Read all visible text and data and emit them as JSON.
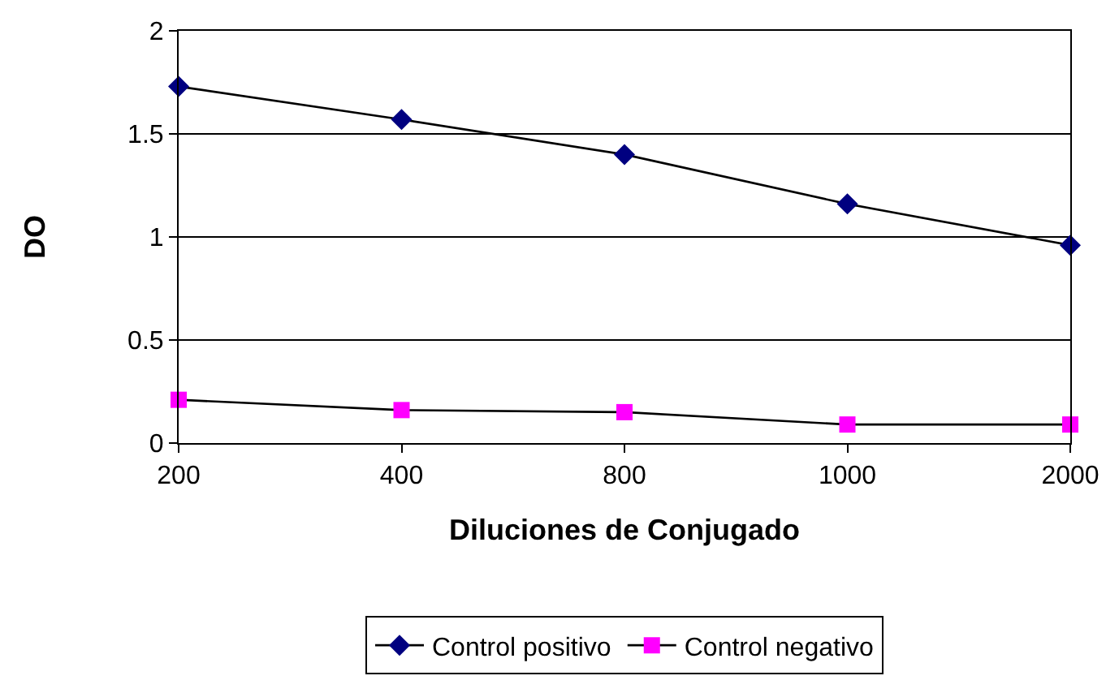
{
  "chart_data": {
    "type": "line",
    "xlabel": "Diluciones de Conjugado",
    "ylabel": "DO",
    "categories": [
      "200",
      "400",
      "800",
      "1000",
      "2000"
    ],
    "series": [
      {
        "name": "Control positivo",
        "color": "#000080",
        "marker": "diamond",
        "values": [
          1.73,
          1.57,
          1.4,
          1.16,
          0.96
        ]
      },
      {
        "name": "Control negativo",
        "color": "#ff00ff",
        "marker": "square",
        "values": [
          0.21,
          0.16,
          0.15,
          0.09,
          0.09
        ]
      }
    ],
    "ylim": [
      0,
      2
    ],
    "yticks": [
      0,
      0.5,
      1,
      1.5,
      2
    ],
    "grid": "y",
    "legend": "bottom"
  }
}
